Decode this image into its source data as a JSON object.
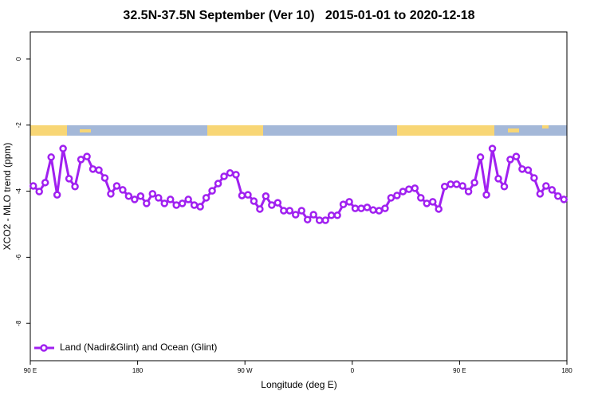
{
  "chart_data": {
    "type": "line",
    "title": "32.5N-37.5N September (Ver 10)   2015-01-01 to 2020-12-18",
    "x_label": "Longitude (deg E)",
    "y_label": "XCO2 - MLO trend (ppm)",
    "x": [
      92.5,
      97.5,
      102.5,
      107.5,
      112.5,
      117.5,
      122.5,
      127.5,
      132.5,
      137.5,
      142.5,
      147.5,
      152.5,
      157.5,
      162.5,
      167.5,
      172.5,
      177.5,
      182.5,
      187.5,
      192.5,
      197.5,
      202.5,
      207.5,
      212.5,
      217.5,
      222.5,
      227.5,
      232.5,
      237.5,
      242.5,
      247.5,
      252.5,
      257.5,
      262.5,
      267.5,
      272.5,
      277.5,
      282.5,
      287.5,
      292.5,
      297.5,
      302.5,
      307.5,
      312.5,
      317.5,
      322.5,
      327.5,
      332.5,
      337.5,
      342.5,
      347.5,
      352.5,
      357.5,
      362.5,
      367.5,
      372.5,
      377.5,
      382.5,
      387.5,
      392.5,
      397.5,
      402.5,
      407.5,
      412.5,
      417.5,
      422.5,
      427.5,
      432.5,
      437.5,
      442.5,
      447.5,
      452.5,
      457.5,
      462.5,
      467.5,
      472.5,
      477.5,
      482.5,
      487.5,
      492.5,
      497.5,
      502.5,
      507.5,
      512.5,
      517.5,
      522.5,
      527.5,
      532.5,
      537.5
    ],
    "series": [
      {
        "name": "Land (Nadir&Glint) and Ocean (Glint)",
        "color": "#a020f0",
        "values": [
          -3.84,
          -4.01,
          -3.74,
          -2.97,
          -4.11,
          -2.71,
          -3.62,
          -3.86,
          -3.04,
          -2.95,
          -3.33,
          -3.36,
          -3.6,
          -4.08,
          -3.84,
          -3.96,
          -4.15,
          -4.25,
          -4.15,
          -4.37,
          -4.08,
          -4.2,
          -4.37,
          -4.25,
          -4.42,
          -4.37,
          -4.25,
          -4.42,
          -4.47,
          -4.2,
          -3.99,
          -3.77,
          -3.55,
          -3.45,
          -3.5,
          -4.13,
          -4.11,
          -4.3,
          -4.54,
          -4.15,
          -4.42,
          -4.35,
          -4.59,
          -4.59,
          -4.71,
          -4.59,
          -4.86,
          -4.71,
          -4.88,
          -4.88,
          -4.73,
          -4.73,
          -4.4,
          -4.32,
          -4.52,
          -4.52,
          -4.49,
          -4.57,
          -4.59,
          -4.52,
          -4.2,
          -4.13,
          -4.01,
          -3.94,
          -3.91,
          -4.2,
          -4.37,
          -4.32,
          -4.54,
          -3.86,
          -3.79,
          -3.79,
          -3.84,
          -4.01,
          -3.74,
          -2.97,
          -4.11,
          -2.71,
          -3.62,
          -3.86,
          -3.04,
          -2.95,
          -3.33,
          -3.36,
          -3.6,
          -4.08,
          -3.84,
          -3.96,
          -4.15,
          -4.25
        ]
      }
    ],
    "xlim": [
      90,
      540
    ],
    "xticks": [
      {
        "value": 90,
        "label": "90 E"
      },
      180,
      {
        "value": 270,
        "label": "90 W"
      },
      {
        "value": 360,
        "label": "0"
      },
      {
        "value": 450,
        "label": "90 E"
      },
      {
        "value": 540,
        "label": "180"
      }
    ],
    "ylim": [
      -9.13,
      0.82
    ],
    "yticks": [
      0,
      -2,
      -4,
      -6,
      -8
    ],
    "grid": false,
    "legend": "bottom-left"
  }
}
